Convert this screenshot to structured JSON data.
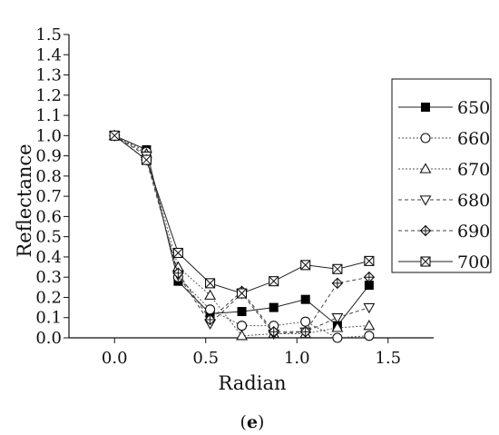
{
  "caption": "(e)",
  "chart_data": {
    "type": "line",
    "xlabel": "Radian",
    "ylabel": "Reflectance",
    "xlim": [
      -0.25,
      1.75
    ],
    "ylim": [
      0,
      1.5
    ],
    "xticks": [
      "0.0",
      "0.5",
      "1.0",
      "1.5"
    ],
    "yticks": [
      "0.0",
      "0.1",
      "0.2",
      "0.3",
      "0.4",
      "0.5",
      "0.6",
      "0.7",
      "0.8",
      "0.9",
      "1.0",
      "1.1",
      "1.2",
      "1.3",
      "1.4",
      "1.5"
    ],
    "legend_position": "right",
    "x": [
      0,
      0.175,
      0.349,
      0.524,
      0.698,
      0.873,
      1.047,
      1.222,
      1.396
    ],
    "series": [
      {
        "name": "650",
        "marker": "filled-square",
        "line": "solid",
        "values": [
          1.0,
          0.93,
          0.28,
          0.12,
          0.13,
          0.15,
          0.19,
          0.06,
          0.26
        ]
      },
      {
        "name": "660",
        "marker": "circle",
        "line": "dotted",
        "values": [
          1.0,
          0.92,
          0.3,
          0.14,
          0.06,
          0.06,
          0.08,
          0.0,
          0.01
        ]
      },
      {
        "name": "670",
        "marker": "triangle-up",
        "line": "dotted",
        "values": [
          1.0,
          0.91,
          0.35,
          0.21,
          0.01,
          0.02,
          0.02,
          0.05,
          0.06
        ]
      },
      {
        "name": "680",
        "marker": "triangle-down",
        "line": "dashed",
        "values": [
          1.0,
          0.9,
          0.31,
          0.07,
          0.22,
          0.02,
          0.03,
          0.1,
          0.15
        ]
      },
      {
        "name": "690",
        "marker": "crossed-diamond",
        "line": "dashed",
        "values": [
          1.0,
          0.88,
          0.32,
          0.09,
          0.23,
          0.03,
          0.03,
          0.27,
          0.3
        ]
      },
      {
        "name": "700",
        "marker": "x-box",
        "line": "solid",
        "values": [
          1.0,
          0.88,
          0.42,
          0.27,
          0.22,
          0.28,
          0.36,
          0.34,
          0.38
        ]
      }
    ]
  }
}
